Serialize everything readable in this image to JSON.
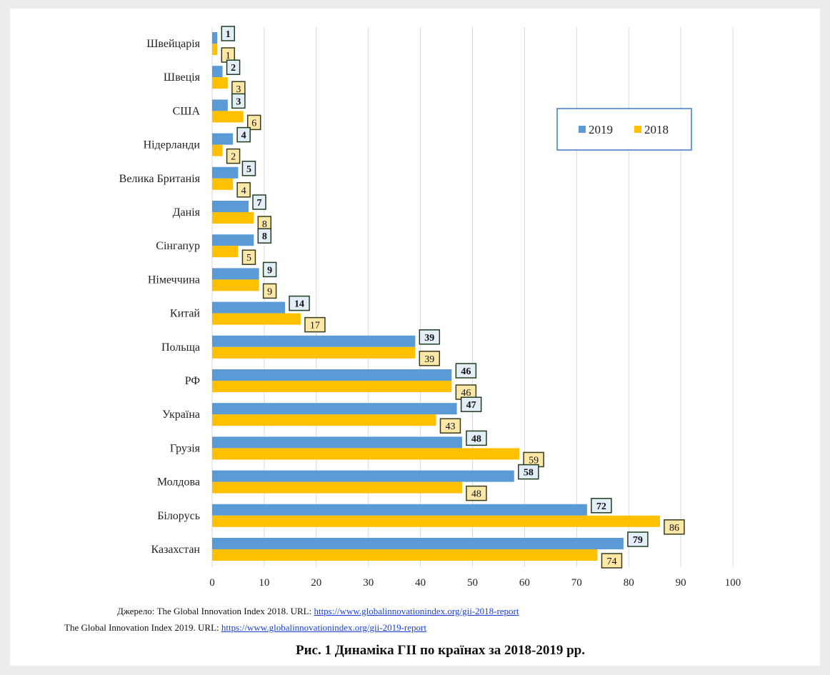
{
  "chart_data": {
    "type": "bar",
    "orientation": "horizontal",
    "categories": [
      "Швейцарія",
      "Швеція",
      "США",
      "Нідерланди",
      "Велика Британія",
      "Данія",
      "Сінгапур",
      "Німеччина",
      "Китай",
      "Польща",
      "РФ",
      "Україна",
      "Грузія",
      "Молдова",
      "Білорусь",
      "Казахстан"
    ],
    "series": [
      {
        "name": "2019",
        "color": "#5b9bd5",
        "values": [
          1,
          2,
          3,
          4,
          5,
          7,
          8,
          9,
          14,
          39,
          46,
          47,
          48,
          58,
          72,
          79
        ]
      },
      {
        "name": "2018",
        "color": "#ffc000",
        "values": [
          1,
          3,
          6,
          2,
          4,
          8,
          5,
          9,
          17,
          39,
          46,
          43,
          59,
          48,
          86,
          74
        ]
      }
    ],
    "xlim": [
      0,
      100
    ],
    "xticks": [
      0,
      10,
      20,
      30,
      40,
      50,
      60,
      70,
      80,
      90,
      100
    ],
    "grid": "vertical",
    "legend_position": "top-right",
    "data_labels": true
  },
  "source": {
    "line1_prefix": "Джерело: The Global  Innovation Index 2018. URL: ",
    "line1_link": "https://www.globalinnovationindex.org/gii-2018-report",
    "line2_prefix": "The Global  Innovation Index 2019. URL: ",
    "line2_link": "https://www.globalinnovationindex.org/gii-2019-report"
  },
  "caption": "Рис. 1 Динаміка ГІІ по країнах за 2018-2019 рр."
}
